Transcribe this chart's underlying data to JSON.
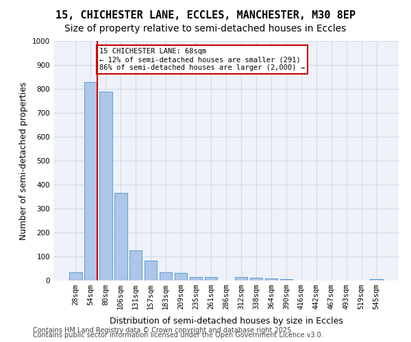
{
  "title_line1": "15, CHICHESTER LANE, ECCLES, MANCHESTER, M30 8EP",
  "title_line2": "Size of property relative to semi-detached houses in Eccles",
  "xlabel": "Distribution of semi-detached houses by size in Eccles",
  "ylabel": "Number of semi-detached properties",
  "categories": [
    "28sqm",
    "54sqm",
    "80sqm",
    "106sqm",
    "131sqm",
    "157sqm",
    "183sqm",
    "209sqm",
    "235sqm",
    "261sqm",
    "286sqm",
    "312sqm",
    "338sqm",
    "364sqm",
    "390sqm",
    "416sqm",
    "442sqm",
    "467sqm",
    "493sqm",
    "519sqm",
    "545sqm"
  ],
  "values": [
    35,
    830,
    790,
    365,
    125,
    82,
    35,
    32,
    15,
    13,
    0,
    13,
    12,
    8,
    6,
    0,
    0,
    0,
    0,
    0,
    7
  ],
  "bar_color": "#aec6e8",
  "bar_edge_color": "#5a9fd4",
  "red_line_x": 1,
  "annotation_title": "15 CHICHESTER LANE: 68sqm",
  "annotation_line1": "← 12% of semi-detached houses are smaller (291)",
  "annotation_line2": "86% of semi-detached houses are larger (2,000) →",
  "annotation_box_color": "#ffffff",
  "annotation_box_edge": "#cc0000",
  "red_line_color": "#cc0000",
  "ylim": [
    0,
    1000
  ],
  "yticks": [
    0,
    100,
    200,
    300,
    400,
    500,
    600,
    700,
    800,
    900,
    1000
  ],
  "grid_color": "#d0d8e8",
  "background_color": "#eef2f8",
  "footnote_line1": "Contains HM Land Registry data © Crown copyright and database right 2025.",
  "footnote_line2": "Contains public sector information licensed under the Open Government Licence v3.0.",
  "title_fontsize": 11,
  "subtitle_fontsize": 10,
  "axis_label_fontsize": 9,
  "tick_fontsize": 7.5,
  "footnote_fontsize": 7
}
